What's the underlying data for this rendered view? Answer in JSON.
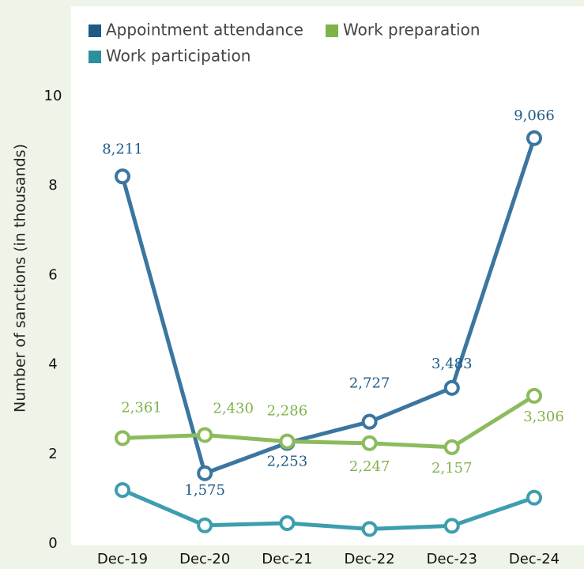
{
  "chart_data": {
    "type": "line",
    "y_label": "Number of sanctions (in thousands)",
    "categories": [
      "Dec-19",
      "Dec-20",
      "Dec-21",
      "Dec-22",
      "Dec-23",
      "Dec-24"
    ],
    "series": [
      {
        "name": "Appointment attendance",
        "color": "#3b76a0",
        "legend_color": "#1e5a86",
        "values": [
          8.211,
          1.575,
          2.253,
          2.727,
          3.483,
          9.066
        ],
        "value_labels": [
          "8,211",
          "1,575",
          "2,253",
          "2,727",
          "3,483",
          "9,066"
        ]
      },
      {
        "name": "Work preparation",
        "color": "#8cbb5c",
        "legend_color": "#7fb34a",
        "values": [
          2.361,
          2.43,
          2.286,
          2.247,
          2.157,
          3.306
        ],
        "value_labels": [
          "2,361",
          "2,430",
          "2,286",
          "2,247",
          "2,157",
          "3,306"
        ]
      },
      {
        "name": "Work participation",
        "color": "#3c9eae",
        "legend_color": "#2c8f9e",
        "values": [
          1.2,
          0.41,
          0.46,
          0.33,
          0.4,
          1.03
        ]
      }
    ],
    "ylim": [
      0,
      10
    ],
    "yticks": [
      0,
      2,
      4,
      6,
      8,
      10
    ]
  }
}
